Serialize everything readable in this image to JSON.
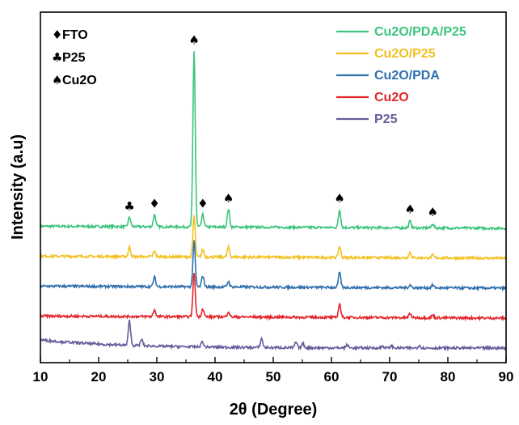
{
  "chart_data": {
    "type": "line",
    "xlabel": "2θ (Degree)",
    "ylabel": "Intensity (a.u)",
    "xlim": [
      10,
      90
    ],
    "xticks": [
      10,
      20,
      30,
      40,
      50,
      60,
      70,
      80,
      90
    ],
    "y_ticks_shown": false,
    "grid": false,
    "legend_position": "top-right",
    "marker_key": [
      {
        "symbol": "♦",
        "label": "FTO"
      },
      {
        "symbol": "♣",
        "label": "P25"
      },
      {
        "symbol": "♠",
        "label": "Cu2O"
      }
    ],
    "series": [
      {
        "name": "Cu2O/PDA/P25",
        "color": "#3cc47c",
        "offset": 4,
        "peaks": [
          [
            25.3,
            0.7
          ],
          [
            29.6,
            0.9
          ],
          [
            36.4,
            12.8
          ],
          [
            37.9,
            0.9
          ],
          [
            42.3,
            1.3
          ],
          [
            61.4,
            1.3
          ],
          [
            73.5,
            0.5
          ],
          [
            77.4,
            0.3
          ]
        ]
      },
      {
        "name": "Cu2O/P25",
        "color": "#f2c01e",
        "offset": 3,
        "peaks": [
          [
            25.3,
            0.7
          ],
          [
            29.6,
            0.4
          ],
          [
            36.4,
            3.0
          ],
          [
            37.9,
            0.5
          ],
          [
            42.3,
            0.7
          ],
          [
            61.4,
            0.8
          ],
          [
            73.5,
            0.4
          ],
          [
            77.4,
            0.2
          ]
        ]
      },
      {
        "name": "Cu2O/PDA",
        "color": "#2f6fad",
        "offset": 2,
        "peaks": [
          [
            29.6,
            0.7
          ],
          [
            36.4,
            3.3
          ],
          [
            37.9,
            0.8
          ],
          [
            42.3,
            0.4
          ],
          [
            61.4,
            1.1
          ],
          [
            73.5,
            0.2
          ],
          [
            77.4,
            0.2
          ]
        ]
      },
      {
        "name": "Cu2O",
        "color": "#e3252b",
        "offset": 1,
        "peaks": [
          [
            29.6,
            0.5
          ],
          [
            36.4,
            3.2
          ],
          [
            37.9,
            0.6
          ],
          [
            42.3,
            0.4
          ],
          [
            61.4,
            1.0
          ],
          [
            73.5,
            0.3
          ],
          [
            77.4,
            0.2
          ]
        ]
      },
      {
        "name": "P25",
        "color": "#6a5a9b",
        "offset": 0,
        "peaks": [
          [
            25.3,
            1.8
          ],
          [
            27.4,
            0.45
          ],
          [
            37.8,
            0.4
          ],
          [
            48.0,
            0.65
          ],
          [
            53.9,
            0.4
          ],
          [
            55.1,
            0.3
          ],
          [
            62.7,
            0.2
          ],
          [
            68.8,
            0.15
          ],
          [
            70.3,
            0.15
          ],
          [
            75.1,
            0.2
          ]
        ]
      }
    ],
    "annotations": [
      {
        "symbol": "♣",
        "x": 25.3
      },
      {
        "symbol": "♦",
        "x": 29.6
      },
      {
        "symbol": "♠",
        "x": 36.4
      },
      {
        "symbol": "♦",
        "x": 37.9
      },
      {
        "symbol": "♠",
        "x": 42.3
      },
      {
        "symbol": "♠",
        "x": 61.4
      },
      {
        "symbol": "♠",
        "x": 73.5
      },
      {
        "symbol": "♠",
        "x": 77.4
      }
    ]
  }
}
